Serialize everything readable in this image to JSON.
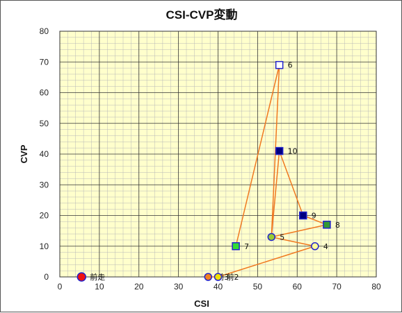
{
  "chart_data": {
    "type": "scatter",
    "title": "CSI-CVP変動",
    "xlabel": "CSI",
    "ylabel": "CVP",
    "xlim": [
      0,
      80
    ],
    "ylim": [
      0,
      80
    ],
    "xticks": [
      0,
      10,
      20,
      30,
      40,
      50,
      60,
      70,
      80
    ],
    "yticks": [
      0,
      10,
      20,
      30,
      40,
      50,
      60,
      70,
      80
    ],
    "grid": true,
    "line_color": "#f07820",
    "plot_background": "#ffffcc",
    "points": [
      {
        "label": "前走",
        "x": 5.5,
        "y": 0,
        "marker": "circle",
        "fill": "#ee1111",
        "stroke": "#2222cc"
      },
      {
        "label": "前3",
        "x": 37.5,
        "y": 0,
        "marker": "circle",
        "fill": "#f08020",
        "stroke": "#2222cc"
      },
      {
        "label": "前2",
        "x": 40,
        "y": 0,
        "marker": "circle",
        "fill": "#f0e000",
        "stroke": "#2222cc"
      },
      {
        "label": "4",
        "x": 64.5,
        "y": 10,
        "marker": "circle",
        "fill": "#ffff99",
        "stroke": "#2222cc"
      },
      {
        "label": "5",
        "x": 53.5,
        "y": 13,
        "marker": "circle",
        "fill": "#99cc33",
        "stroke": "#2222cc"
      },
      {
        "label": "6",
        "x": 55.5,
        "y": 69,
        "marker": "square",
        "fill": "#ffffff",
        "stroke": "#2222cc"
      },
      {
        "label": "7",
        "x": 44.5,
        "y": 10,
        "marker": "square",
        "fill": "#33dd33",
        "stroke": "#2222cc"
      },
      {
        "label": "8",
        "x": 67.5,
        "y": 17,
        "marker": "square",
        "fill": "#339933",
        "stroke": "#2222cc"
      },
      {
        "label": "9",
        "x": 61.5,
        "y": 20,
        "marker": "square",
        "fill": "#000080",
        "stroke": "#2222cc"
      },
      {
        "label": "10",
        "x": 55.5,
        "y": 41,
        "marker": "square",
        "fill": "#000080",
        "stroke": "#2222cc"
      }
    ],
    "line_order": [
      "前3",
      "前2",
      "4",
      "5",
      "6",
      "7"
    ],
    "line_order_b": [
      "8",
      "9",
      "10"
    ],
    "connect": [
      [
        "前3",
        "前2"
      ],
      [
        "前2",
        "4"
      ],
      [
        "4",
        "5"
      ],
      [
        "5",
        "6"
      ],
      [
        "6",
        "7"
      ],
      [
        "5",
        "8"
      ],
      [
        "8",
        "9"
      ],
      [
        "9",
        "10"
      ],
      [
        "10",
        "5"
      ]
    ]
  }
}
